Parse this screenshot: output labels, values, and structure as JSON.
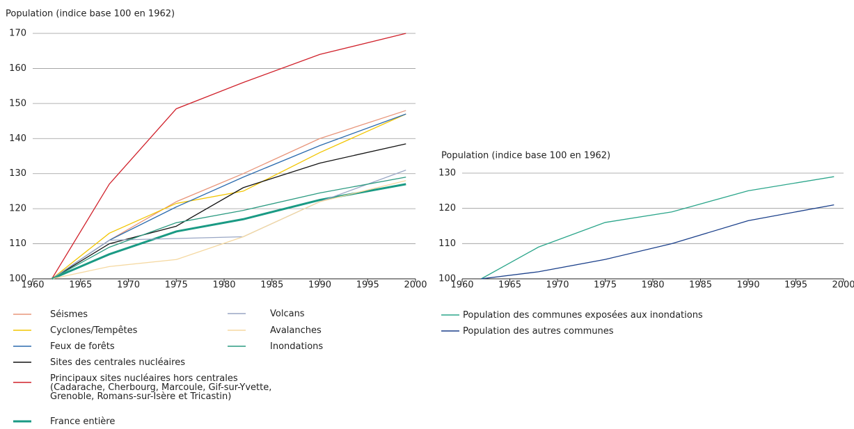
{
  "chart_data": [
    {
      "type": "line",
      "title": "Population (indice base 100 en 1962)",
      "x": [
        1962,
        1968,
        1975,
        1982,
        1990,
        1999
      ],
      "xlim": [
        1960,
        2000
      ],
      "xticks": [
        1960,
        1965,
        1970,
        1975,
        1980,
        1985,
        1990,
        1995,
        2000
      ],
      "ylim": [
        100,
        170
      ],
      "yticks": [
        100,
        110,
        120,
        130,
        140,
        150,
        160,
        170
      ],
      "grid": true,
      "series": [
        {
          "name": "Séismes",
          "color": "#e8957a",
          "values": [
            100,
            111,
            122,
            130,
            140,
            148
          ]
        },
        {
          "name": "Cyclones/Tempêtes",
          "color": "#f2c500",
          "values": [
            100,
            113,
            121.5,
            125,
            136,
            147
          ]
        },
        {
          "name": "Feux de forêts",
          "color": "#2a6aad",
          "values": [
            100,
            111,
            120.5,
            129,
            138,
            147
          ]
        },
        {
          "name": "Sites des centrales nucléaires",
          "color": "#111111",
          "values": [
            100,
            110,
            115,
            126,
            133,
            138.5
          ]
        },
        {
          "name": "Principaux sites nucléaires  hors centrales\n(Cadarache, Cherbourg, Marcoule, Gif-sur-Yvette,\nGrenoble, Romans-sur-Isère et Tricastin)",
          "color": "#d0202a",
          "values": [
            100,
            127,
            148.5,
            156,
            164,
            170
          ]
        },
        {
          "name": "France entière",
          "color": "#1a9a84",
          "width": 3,
          "values": [
            100,
            107,
            113.5,
            117,
            122.5,
            127
          ]
        },
        {
          "name": "Volcans",
          "color": "#99a6c4",
          "values": [
            100,
            111,
            111.5,
            112,
            122,
            131
          ]
        },
        {
          "name": "Avalanches",
          "color": "#f5d8a0",
          "values": [
            100,
            103.5,
            105.5,
            112,
            122,
            128
          ]
        },
        {
          "name": "Inondations",
          "color": "#2a9a80",
          "values": [
            100,
            109,
            116,
            119.5,
            124.5,
            129
          ]
        }
      ]
    },
    {
      "type": "line",
      "title": "Population (indice base 100 en 1962)",
      "x": [
        1962,
        1968,
        1975,
        1982,
        1990,
        1999
      ],
      "xlim": [
        1960,
        2000
      ],
      "xticks": [
        1960,
        1965,
        1970,
        1975,
        1980,
        1985,
        1990,
        1995,
        2000
      ],
      "ylim": [
        100,
        130
      ],
      "yticks": [
        100,
        110,
        120,
        130
      ],
      "grid": true,
      "series": [
        {
          "name": "Population des communes exposées aux inondations",
          "color": "#2aa58a",
          "values": [
            100,
            109,
            116,
            119,
            125,
            129
          ]
        },
        {
          "name": "Population des autres communes",
          "color": "#1a3f8a",
          "values": [
            100,
            102,
            105.5,
            110,
            116.5,
            121
          ]
        }
      ]
    }
  ]
}
